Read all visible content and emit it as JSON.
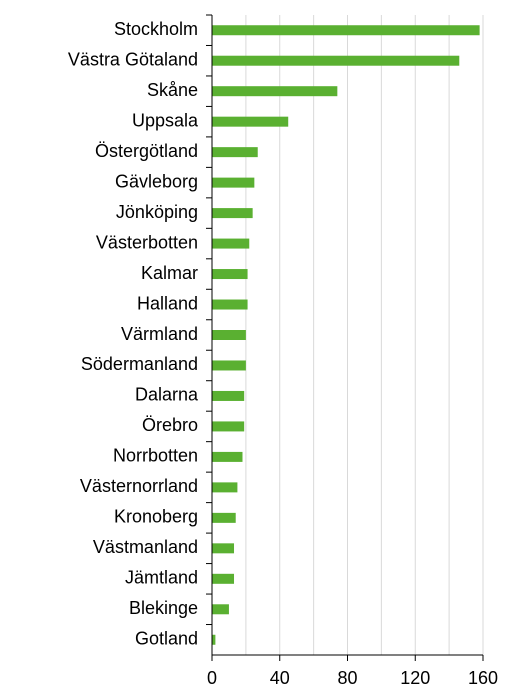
{
  "chart_data": {
    "type": "barh",
    "categories": [
      "Stockholm",
      "Västra Götaland",
      "Skåne",
      "Uppsala",
      "Östergötland",
      "Gävleborg",
      "Jönköping",
      "Västerbotten",
      "Kalmar",
      "Halland",
      "Värmland",
      "Södermanland",
      "Dalarna",
      "Örebro",
      "Norrbotten",
      "Västernorrland",
      "Kronoberg",
      "Västmanland",
      "Jämtland",
      "Blekinge",
      "Gotland"
    ],
    "values": [
      158,
      146,
      74,
      45,
      27,
      25,
      24,
      22,
      21,
      21,
      20,
      20,
      19,
      19,
      18,
      15,
      14,
      13,
      13,
      10,
      2
    ],
    "color": "#5ab031",
    "xlim": [
      0,
      160
    ],
    "xticks": [
      0,
      40,
      80,
      120,
      160
    ],
    "minor_grid": [
      20,
      60,
      100,
      140
    ],
    "grid": true
  }
}
